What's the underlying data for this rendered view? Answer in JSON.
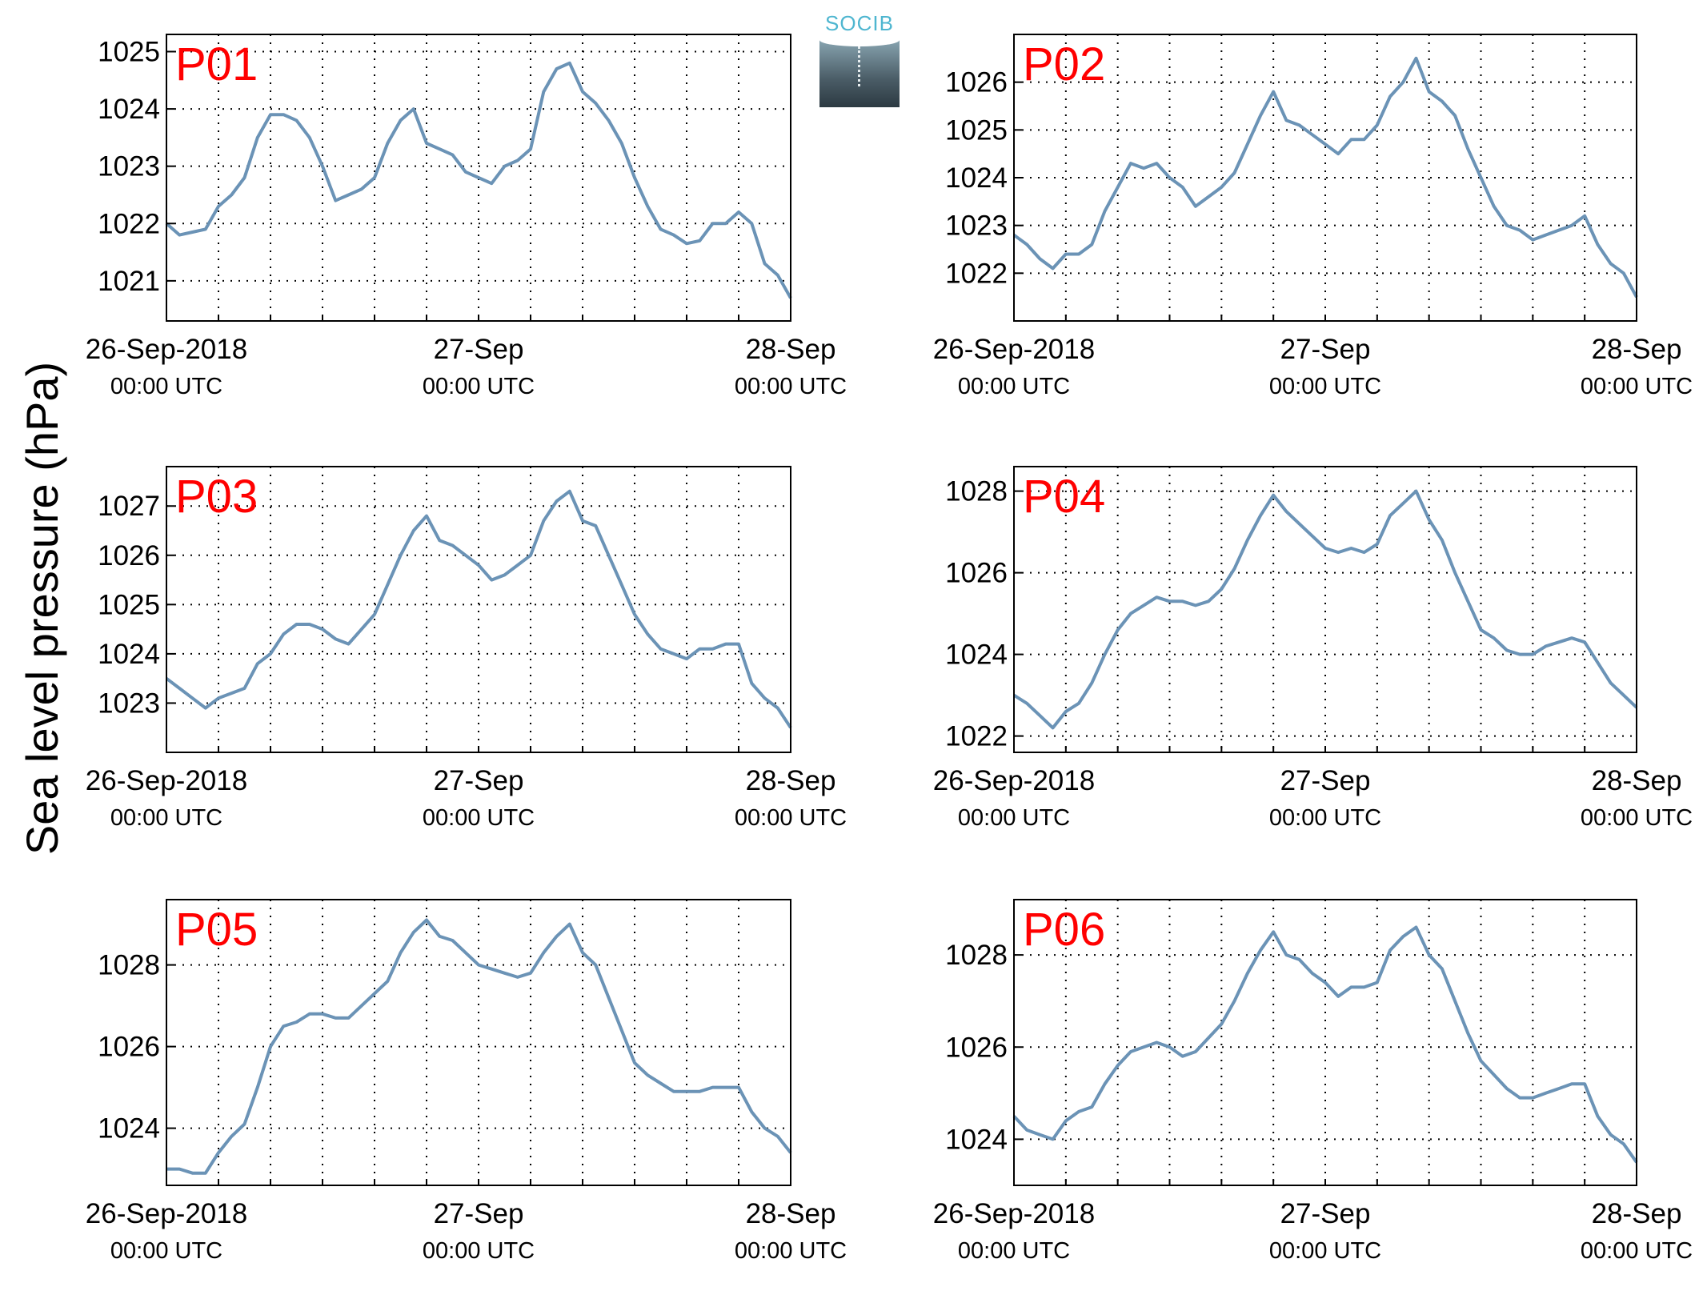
{
  "figure": {
    "ylabel": "Sea level pressure (hPa)",
    "logo_text": "SOCIB",
    "line_color": "#6b93b6",
    "label_color": "#ff0000"
  },
  "chart_data": [
    {
      "type": "line",
      "label": "P01",
      "ylim": [
        1020.3,
        1025.3
      ],
      "yticks": [
        1021,
        1022,
        1023,
        1024,
        1025
      ],
      "xlim": [
        0,
        48
      ],
      "xticks": [
        0,
        24,
        48
      ],
      "xticklabels": [
        [
          "26-Sep-2018",
          "00:00 UTC"
        ],
        [
          "27-Sep",
          "00:00 UTC"
        ],
        [
          "28-Sep",
          "00:00 UTC"
        ]
      ],
      "grid": true,
      "x": [
        0,
        1,
        2,
        3,
        4,
        5,
        6,
        7,
        8,
        9,
        10,
        11,
        12,
        13,
        14,
        15,
        16,
        17,
        18,
        19,
        20,
        21,
        22,
        23,
        24,
        25,
        26,
        27,
        28,
        29,
        30,
        31,
        32,
        33,
        34,
        35,
        36,
        37,
        38,
        39,
        40,
        41,
        42,
        43,
        44,
        45,
        46,
        47,
        48
      ],
      "y": [
        1022.0,
        1021.8,
        1021.85,
        1021.9,
        1022.3,
        1022.5,
        1022.8,
        1023.5,
        1023.9,
        1023.9,
        1023.8,
        1023.5,
        1023.0,
        1022.4,
        1022.5,
        1022.6,
        1022.8,
        1023.4,
        1023.8,
        1024.0,
        1023.4,
        1023.3,
        1023.2,
        1022.9,
        1022.8,
        1022.7,
        1023.0,
        1023.1,
        1023.3,
        1024.3,
        1024.7,
        1024.8,
        1024.3,
        1024.1,
        1023.8,
        1023.4,
        1022.8,
        1022.3,
        1021.9,
        1021.8,
        1021.65,
        1021.7,
        1022.0,
        1022.0,
        1022.2,
        1022.0,
        1021.3,
        1021.1,
        1020.7
      ]
    },
    {
      "type": "line",
      "label": "P02",
      "ylim": [
        1021.0,
        1027.0
      ],
      "yticks": [
        1022,
        1023,
        1024,
        1025,
        1026
      ],
      "xlim": [
        0,
        48
      ],
      "xticks": [
        0,
        24,
        48
      ],
      "xticklabels": [
        [
          "26-Sep-2018",
          "00:00 UTC"
        ],
        [
          "27-Sep",
          "00:00 UTC"
        ],
        [
          "28-Sep",
          "00:00 UTC"
        ]
      ],
      "grid": true,
      "x": [
        0,
        1,
        2,
        3,
        4,
        5,
        6,
        7,
        8,
        9,
        10,
        11,
        12,
        13,
        14,
        15,
        16,
        17,
        18,
        19,
        20,
        21,
        22,
        23,
        24,
        25,
        26,
        27,
        28,
        29,
        30,
        31,
        32,
        33,
        34,
        35,
        36,
        37,
        38,
        39,
        40,
        41,
        42,
        43,
        44,
        45,
        46,
        47,
        48
      ],
      "y": [
        1022.8,
        1022.6,
        1022.3,
        1022.1,
        1022.4,
        1022.4,
        1022.6,
        1023.3,
        1023.8,
        1024.3,
        1024.2,
        1024.3,
        1024.0,
        1023.8,
        1023.4,
        1023.6,
        1023.8,
        1024.1,
        1024.7,
        1025.3,
        1025.8,
        1025.2,
        1025.1,
        1024.9,
        1024.7,
        1024.5,
        1024.8,
        1024.8,
        1025.1,
        1025.7,
        1026.0,
        1026.5,
        1025.8,
        1025.6,
        1025.3,
        1024.6,
        1024.0,
        1023.4,
        1023.0,
        1022.9,
        1022.7,
        1022.8,
        1022.9,
        1023.0,
        1023.2,
        1022.6,
        1022.2,
        1022.0,
        1021.5
      ]
    },
    {
      "type": "line",
      "label": "P03",
      "ylim": [
        1022.0,
        1027.8
      ],
      "yticks": [
        1023,
        1024,
        1025,
        1026,
        1027
      ],
      "xlim": [
        0,
        48
      ],
      "xticks": [
        0,
        24,
        48
      ],
      "xticklabels": [
        [
          "26-Sep-2018",
          "00:00 UTC"
        ],
        [
          "27-Sep",
          "00:00 UTC"
        ],
        [
          "28-Sep",
          "00:00 UTC"
        ]
      ],
      "grid": true,
      "x": [
        0,
        1,
        2,
        3,
        4,
        5,
        6,
        7,
        8,
        9,
        10,
        11,
        12,
        13,
        14,
        15,
        16,
        17,
        18,
        19,
        20,
        21,
        22,
        23,
        24,
        25,
        26,
        27,
        28,
        29,
        30,
        31,
        32,
        33,
        34,
        35,
        36,
        37,
        38,
        39,
        40,
        41,
        42,
        43,
        44,
        45,
        46,
        47,
        48
      ],
      "y": [
        1023.5,
        1023.3,
        1023.1,
        1022.9,
        1023.1,
        1023.2,
        1023.3,
        1023.8,
        1024.0,
        1024.4,
        1024.6,
        1024.6,
        1024.5,
        1024.3,
        1024.2,
        1024.5,
        1024.8,
        1025.4,
        1026.0,
        1026.5,
        1026.8,
        1026.3,
        1026.2,
        1026.0,
        1025.8,
        1025.5,
        1025.6,
        1025.8,
        1026.0,
        1026.7,
        1027.1,
        1027.3,
        1026.7,
        1026.6,
        1026.0,
        1025.4,
        1024.8,
        1024.4,
        1024.1,
        1024.0,
        1023.9,
        1024.1,
        1024.1,
        1024.2,
        1024.2,
        1023.4,
        1023.1,
        1022.9,
        1022.5
      ]
    },
    {
      "type": "line",
      "label": "P04",
      "ylim": [
        1021.6,
        1028.6
      ],
      "yticks": [
        1022,
        1024,
        1026,
        1028
      ],
      "xlim": [
        0,
        48
      ],
      "xticks": [
        0,
        24,
        48
      ],
      "xticklabels": [
        [
          "26-Sep-2018",
          "00:00 UTC"
        ],
        [
          "27-Sep",
          "00:00 UTC"
        ],
        [
          "28-Sep",
          "00:00 UTC"
        ]
      ],
      "grid": true,
      "x": [
        0,
        1,
        2,
        3,
        4,
        5,
        6,
        7,
        8,
        9,
        10,
        11,
        12,
        13,
        14,
        15,
        16,
        17,
        18,
        19,
        20,
        21,
        22,
        23,
        24,
        25,
        26,
        27,
        28,
        29,
        30,
        31,
        32,
        33,
        34,
        35,
        36,
        37,
        38,
        39,
        40,
        41,
        42,
        43,
        44,
        45,
        46,
        47,
        48
      ],
      "y": [
        1023.0,
        1022.8,
        1022.5,
        1022.2,
        1022.6,
        1022.8,
        1023.3,
        1024.0,
        1024.6,
        1025.0,
        1025.2,
        1025.4,
        1025.3,
        1025.3,
        1025.2,
        1025.3,
        1025.6,
        1026.1,
        1026.8,
        1027.4,
        1027.9,
        1027.5,
        1027.2,
        1026.9,
        1026.6,
        1026.5,
        1026.6,
        1026.5,
        1026.7,
        1027.4,
        1027.7,
        1028.0,
        1027.3,
        1026.8,
        1026.0,
        1025.3,
        1024.6,
        1024.4,
        1024.1,
        1024.0,
        1024.0,
        1024.2,
        1024.3,
        1024.4,
        1024.3,
        1023.8,
        1023.3,
        1023.0,
        1022.7
      ]
    },
    {
      "type": "line",
      "label": "P05",
      "ylim": [
        1022.6,
        1029.6
      ],
      "yticks": [
        1024,
        1026,
        1028
      ],
      "xlim": [
        0,
        48
      ],
      "xticks": [
        0,
        24,
        48
      ],
      "xticklabels": [
        [
          "26-Sep-2018",
          "00:00 UTC"
        ],
        [
          "27-Sep",
          "00:00 UTC"
        ],
        [
          "28-Sep",
          "00:00 UTC"
        ]
      ],
      "grid": true,
      "x": [
        0,
        1,
        2,
        3,
        4,
        5,
        6,
        7,
        8,
        9,
        10,
        11,
        12,
        13,
        14,
        15,
        16,
        17,
        18,
        19,
        20,
        21,
        22,
        23,
        24,
        25,
        26,
        27,
        28,
        29,
        30,
        31,
        32,
        33,
        34,
        35,
        36,
        37,
        38,
        39,
        40,
        41,
        42,
        43,
        44,
        45,
        46,
        47,
        48
      ],
      "y": [
        1023.0,
        1023.0,
        1022.9,
        1022.9,
        1023.4,
        1023.8,
        1024.1,
        1025.0,
        1026.0,
        1026.5,
        1026.6,
        1026.8,
        1026.8,
        1026.7,
        1026.7,
        1027.0,
        1027.3,
        1027.6,
        1028.3,
        1028.8,
        1029.1,
        1028.7,
        1028.6,
        1028.3,
        1028.0,
        1027.9,
        1027.8,
        1027.7,
        1027.8,
        1028.3,
        1028.7,
        1029.0,
        1028.3,
        1028.0,
        1027.2,
        1026.4,
        1025.6,
        1025.3,
        1025.1,
        1024.9,
        1024.9,
        1024.9,
        1025.0,
        1025.0,
        1025.0,
        1024.4,
        1024.0,
        1023.8,
        1023.4
      ]
    },
    {
      "type": "line",
      "label": "P06",
      "ylim": [
        1023.0,
        1029.2
      ],
      "yticks": [
        1024,
        1026,
        1028
      ],
      "xlim": [
        0,
        48
      ],
      "xticks": [
        0,
        24,
        48
      ],
      "xticklabels": [
        [
          "26-Sep-2018",
          "00:00 UTC"
        ],
        [
          "27-Sep",
          "00:00 UTC"
        ],
        [
          "28-Sep",
          "00:00 UTC"
        ]
      ],
      "grid": true,
      "x": [
        0,
        1,
        2,
        3,
        4,
        5,
        6,
        7,
        8,
        9,
        10,
        11,
        12,
        13,
        14,
        15,
        16,
        17,
        18,
        19,
        20,
        21,
        22,
        23,
        24,
        25,
        26,
        27,
        28,
        29,
        30,
        31,
        32,
        33,
        34,
        35,
        36,
        37,
        38,
        39,
        40,
        41,
        42,
        43,
        44,
        45,
        46,
        47,
        48
      ],
      "y": [
        1024.5,
        1024.2,
        1024.1,
        1024.0,
        1024.4,
        1024.6,
        1024.7,
        1025.2,
        1025.6,
        1025.9,
        1026.0,
        1026.1,
        1026.0,
        1025.8,
        1025.9,
        1026.2,
        1026.5,
        1027.0,
        1027.6,
        1028.1,
        1028.5,
        1028.0,
        1027.9,
        1027.6,
        1027.4,
        1027.1,
        1027.3,
        1027.3,
        1027.4,
        1028.1,
        1028.4,
        1028.6,
        1028.0,
        1027.7,
        1027.0,
        1026.3,
        1025.7,
        1025.4,
        1025.1,
        1024.9,
        1024.9,
        1025.0,
        1025.1,
        1025.2,
        1025.2,
        1024.5,
        1024.1,
        1023.9,
        1023.5
      ]
    }
  ]
}
